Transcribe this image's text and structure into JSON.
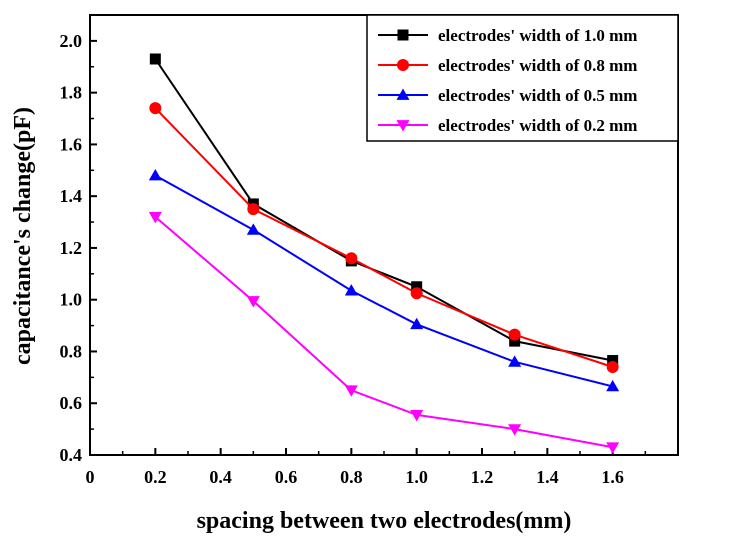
{
  "chart_data": {
    "type": "line",
    "title": "",
    "xlabel": "spacing between two electrodes(mm)",
    "ylabel": "capacitance's change(pF)",
    "xlim": [
      0,
      1.8
    ],
    "ylim": [
      0.4,
      2.1
    ],
    "xticks": [
      0,
      0.2,
      0.4,
      0.6,
      0.8,
      1.0,
      1.2,
      1.4,
      1.6
    ],
    "xtick_labels": [
      "0",
      "0.2",
      "0.4",
      "0.6",
      "0.8",
      "1.0",
      "1.2",
      "1.4",
      "1.6"
    ],
    "yticks": [
      0.4,
      0.6,
      0.8,
      1.0,
      1.2,
      1.4,
      1.6,
      1.8,
      2.0
    ],
    "ytick_labels": [
      "0.4",
      "0.6",
      "0.8",
      "1.0",
      "1.2",
      "1.4",
      "1.6",
      "1.8",
      "2.0"
    ],
    "legend_position": "top-right",
    "grid": false,
    "x": [
      0.2,
      0.5,
      0.8,
      1.0,
      1.3,
      1.6
    ],
    "series": [
      {
        "name": "electrodes' width of 1.0 mm",
        "color": "#000000",
        "marker": "square",
        "values": [
          1.93,
          1.37,
          1.15,
          1.05,
          0.84,
          0.765
        ]
      },
      {
        "name": "electrodes' width of 0.8 mm",
        "color": "#ff0000",
        "marker": "circle",
        "values": [
          1.74,
          1.35,
          1.16,
          1.025,
          0.865,
          0.74
        ]
      },
      {
        "name": "electrodes' width of 0.5 mm",
        "color": "#0000ff",
        "marker": "triangle-up",
        "values": [
          1.48,
          1.27,
          1.035,
          0.905,
          0.76,
          0.665
        ]
      },
      {
        "name": "electrodes' width of 0.2 mm",
        "color": "#ff00ff",
        "marker": "triangle-down",
        "values": [
          1.32,
          0.995,
          0.65,
          0.555,
          0.5,
          0.43
        ]
      }
    ]
  }
}
